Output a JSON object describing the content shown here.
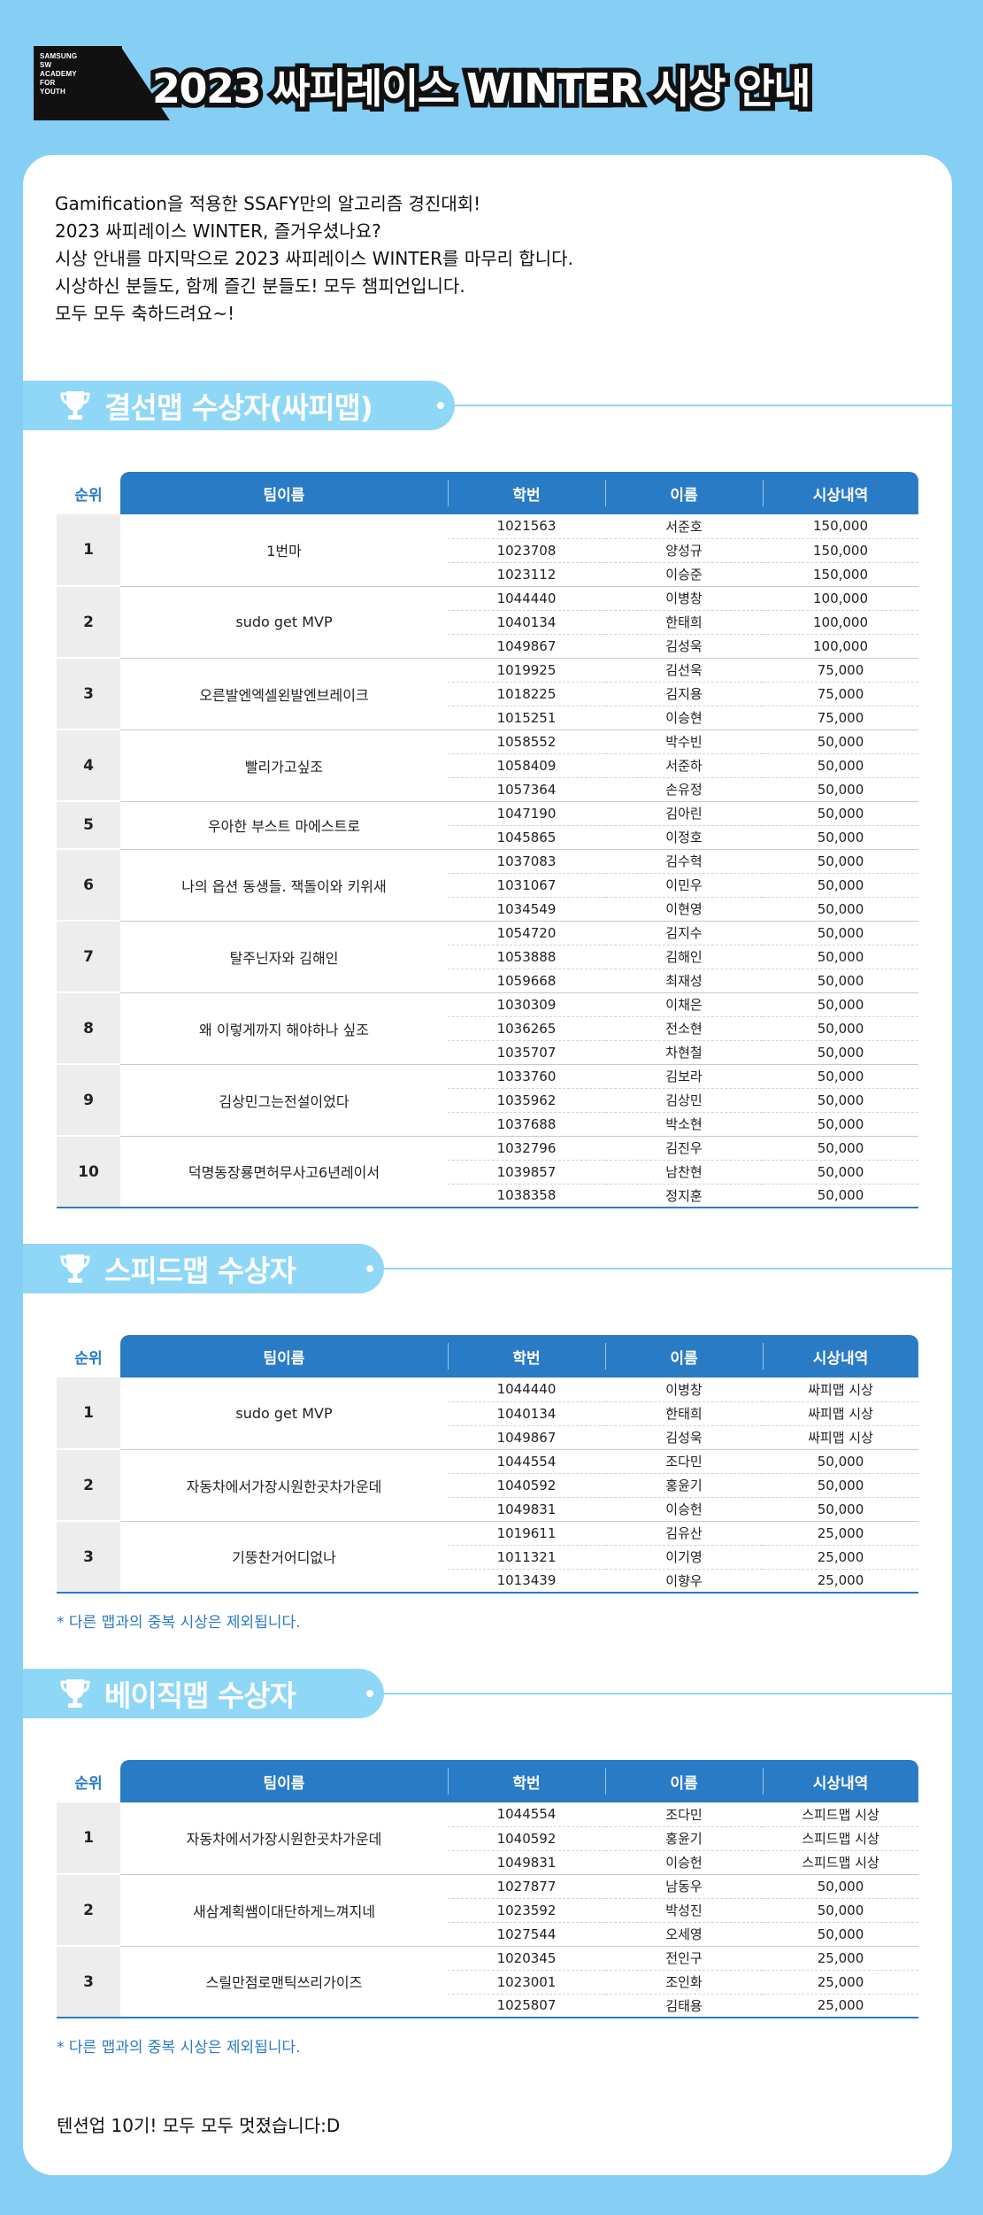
{
  "header": {
    "logo_lines": "SAMSUNG\nSW\nACADEMY\nFOR\nYOUTH",
    "title": "2023 싸피레이스 WINTER 시상 안내"
  },
  "intro": [
    "Gamification을 적용한 SSAFY만의 알고리즘 경진대회!",
    "2023 싸피레이스 WINTER, 즐거우셨나요?",
    "시상 안내를 마지막으로 2023 싸피레이스 WINTER를 마무리 합니다.",
    "시상하신 분들도, 함께 즐긴 분들도! 모두 챔피언입니다.",
    "모두 모두 축하드려요~!"
  ],
  "columns": [
    "순위",
    "팀이름",
    "학번",
    "이름",
    "시상내역"
  ],
  "sections": [
    {
      "title": "결선맵 수상자(싸피맵)",
      "teams": [
        {
          "rank": "1",
          "team": "1번마",
          "members": [
            [
              "1021563",
              "서준호",
              "150,000"
            ],
            [
              "1023708",
              "양성규",
              "150,000"
            ],
            [
              "1023112",
              "이승준",
              "150,000"
            ]
          ]
        },
        {
          "rank": "2",
          "team": "sudo get MVP",
          "members": [
            [
              "1044440",
              "이병창",
              "100,000"
            ],
            [
              "1040134",
              "한태희",
              "100,000"
            ],
            [
              "1049867",
              "김성욱",
              "100,000"
            ]
          ]
        },
        {
          "rank": "3",
          "team": "오른발엔엑셀왼발엔브레이크",
          "members": [
            [
              "1019925",
              "김선욱",
              "75,000"
            ],
            [
              "1018225",
              "김지용",
              "75,000"
            ],
            [
              "1015251",
              "이승현",
              "75,000"
            ]
          ]
        },
        {
          "rank": "4",
          "team": "빨리가고싶조",
          "members": [
            [
              "1058552",
              "박수빈",
              "50,000"
            ],
            [
              "1058409",
              "서준하",
              "50,000"
            ],
            [
              "1057364",
              "손유정",
              "50,000"
            ]
          ]
        },
        {
          "rank": "5",
          "team": "우아한 부스트 마에스트로",
          "members": [
            [
              "1047190",
              "김아린",
              "50,000"
            ],
            [
              "1045865",
              "이정호",
              "50,000"
            ]
          ]
        },
        {
          "rank": "6",
          "team": "나의 옵션 동생들. 잭돌이와 키위새",
          "members": [
            [
              "1037083",
              "김수혁",
              "50,000"
            ],
            [
              "1031067",
              "이민우",
              "50,000"
            ],
            [
              "1034549",
              "이현영",
              "50,000"
            ]
          ]
        },
        {
          "rank": "7",
          "team": "탈주닌자와 김해인",
          "members": [
            [
              "1054720",
              "김지수",
              "50,000"
            ],
            [
              "1053888",
              "김해인",
              "50,000"
            ],
            [
              "1059668",
              "최재성",
              "50,000"
            ]
          ]
        },
        {
          "rank": "8",
          "team": "왜 이렇게까지 해야하나 싶조",
          "members": [
            [
              "1030309",
              "이채은",
              "50,000"
            ],
            [
              "1036265",
              "전소현",
              "50,000"
            ],
            [
              "1035707",
              "차현철",
              "50,000"
            ]
          ]
        },
        {
          "rank": "9",
          "team": "김상민그는전설이었다",
          "members": [
            [
              "1033760",
              "김보라",
              "50,000"
            ],
            [
              "1035962",
              "김상민",
              "50,000"
            ],
            [
              "1037688",
              "박소현",
              "50,000"
            ]
          ]
        },
        {
          "rank": "10",
          "team": "덕명동장룡면허무사고6년레이서",
          "members": [
            [
              "1032796",
              "김진우",
              "50,000"
            ],
            [
              "1039857",
              "남찬현",
              "50,000"
            ],
            [
              "1038358",
              "정지훈",
              "50,000"
            ]
          ]
        }
      ]
    },
    {
      "title": "스피드맵 수상자",
      "teams": [
        {
          "rank": "1",
          "team": "sudo get MVP",
          "members": [
            [
              "1044440",
              "이병창",
              "싸피맵 시상"
            ],
            [
              "1040134",
              "한태희",
              "싸피맵 시상"
            ],
            [
              "1049867",
              "김성욱",
              "싸피맵 시상"
            ]
          ]
        },
        {
          "rank": "2",
          "team": "자동차에서가장시원한곳차가운데",
          "members": [
            [
              "1044554",
              "조다민",
              "50,000"
            ],
            [
              "1040592",
              "홍윤기",
              "50,000"
            ],
            [
              "1049831",
              "이승헌",
              "50,000"
            ]
          ]
        },
        {
          "rank": "3",
          "team": "기뚱찬거어디없나",
          "members": [
            [
              "1019611",
              "김유산",
              "25,000"
            ],
            [
              "1011321",
              "이기영",
              "25,000"
            ],
            [
              "1013439",
              "이향우",
              "25,000"
            ]
          ]
        }
      ],
      "note": "* 다른 맵과의 중복 시상은 제외됩니다."
    },
    {
      "title": "베이직맵 수상자",
      "teams": [
        {
          "rank": "1",
          "team": "자동차에서가장시원한곳차가운데",
          "members": [
            [
              "1044554",
              "조다민",
              "스피드맵 시상"
            ],
            [
              "1040592",
              "홍윤기",
              "스피드맵 시상"
            ],
            [
              "1049831",
              "이승헌",
              "스피드맵 시상"
            ]
          ]
        },
        {
          "rank": "2",
          "team": "새삼계획쌤이대단하게느껴지네",
          "members": [
            [
              "1027877",
              "남동우",
              "50,000"
            ],
            [
              "1023592",
              "박성진",
              "50,000"
            ],
            [
              "1027544",
              "오세영",
              "50,000"
            ]
          ]
        },
        {
          "rank": "3",
          "team": "스릴만점로맨틱쓰리가이즈",
          "members": [
            [
              "1020345",
              "전인구",
              "25,000"
            ],
            [
              "1023001",
              "조인화",
              "25,000"
            ],
            [
              "1025807",
              "김태용",
              "25,000"
            ]
          ]
        }
      ],
      "note": "* 다른 맵과의 중복 시상은 제외됩니다."
    }
  ],
  "outro": "텐션업 10기! 모두 모두 멋졌습니다:D",
  "colors": {
    "background": "#86cff4",
    "accent": "#2a7bc5",
    "pill": "#8fd7f7"
  },
  "icons": {
    "section_icon": "trophy-icon"
  }
}
